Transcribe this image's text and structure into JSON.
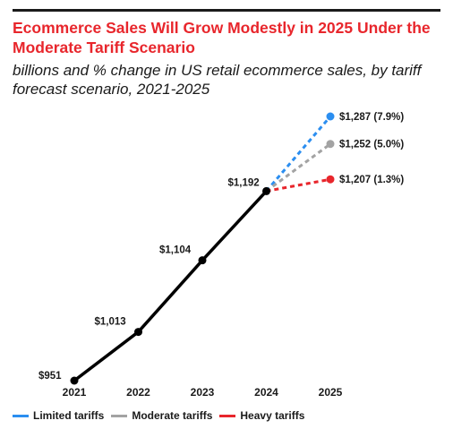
{
  "header": {
    "title": "Ecommerce Sales Will Grow Modestly in 2025 Under the Moderate Tariff Scenario",
    "subtitle": "billions and % change in US retail ecommerce sales, by tariff forecast scenario, 2021-2025"
  },
  "colors": {
    "title": "#e8262c",
    "line": "#000000",
    "limited": "#2b8ef0",
    "moderate": "#a3a3a3",
    "heavy": "#e8262c"
  },
  "chart_data": {
    "type": "line",
    "title": "Ecommerce Sales Will Grow Modestly in 2025 Under the Moderate Tariff Scenario",
    "subtitle": "billions and % change in US retail ecommerce sales, by tariff forecast scenario, 2021-2025",
    "categories": [
      "2021",
      "2022",
      "2023",
      "2024",
      "2025"
    ],
    "ylim": [
      951,
      1287
    ],
    "grid": false,
    "legend_position": "bottom",
    "historical": {
      "x": [
        "2021",
        "2022",
        "2023",
        "2024"
      ],
      "values": [
        951,
        1013,
        1104,
        1192
      ],
      "labels": [
        "$951",
        "$1,013",
        "$1,104",
        "$1,192"
      ]
    },
    "series": [
      {
        "name": "Limited tariffs",
        "x": [
          "2024",
          "2025"
        ],
        "values": [
          1192,
          1287
        ],
        "label": "$1,287 (7.9%)",
        "color_key": "limited"
      },
      {
        "name": "Moderate tariffs",
        "x": [
          "2024",
          "2025"
        ],
        "values": [
          1192,
          1252
        ],
        "label": "$1,252 (5.0%)",
        "color_key": "moderate"
      },
      {
        "name": "Heavy tariffs",
        "x": [
          "2024",
          "2025"
        ],
        "values": [
          1192,
          1207
        ],
        "label": "$1,207 (1.3%)",
        "color_key": "heavy"
      }
    ]
  },
  "legend": {
    "items": [
      {
        "label": "Limited tariffs",
        "color_key": "limited"
      },
      {
        "label": "Moderate tariffs",
        "color_key": "moderate"
      },
      {
        "label": "Heavy tariffs",
        "color_key": "heavy"
      }
    ]
  }
}
